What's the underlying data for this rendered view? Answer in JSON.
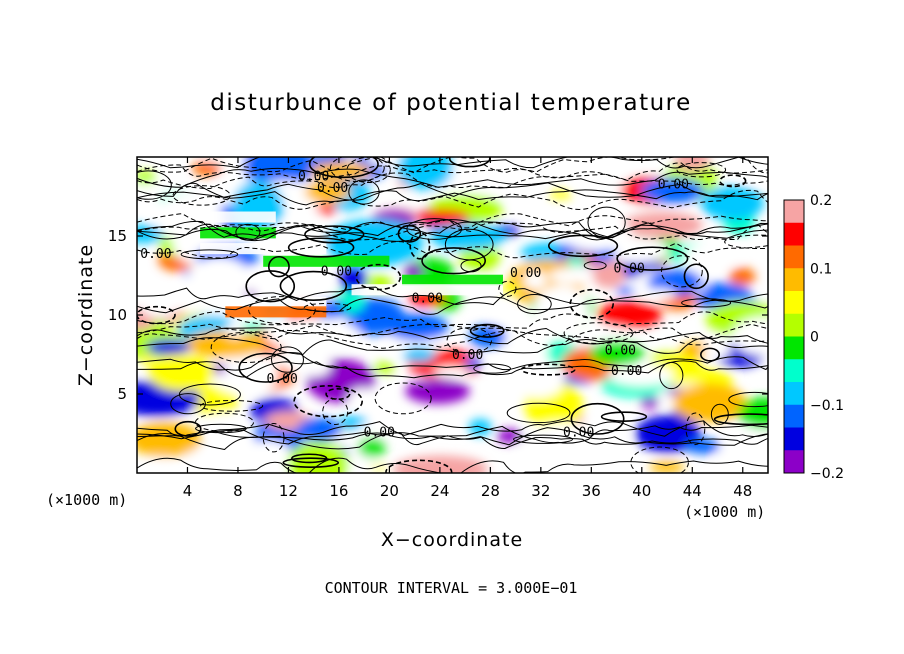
{
  "chart_data": {
    "type": "heatmap",
    "title": "disturbunce of potential temperature",
    "xlabel": "X−coordinate",
    "ylabel": "Z−coordinate",
    "x_unit_left": "(×1000 m)",
    "x_unit_right": "(×1000 m)",
    "footer": "CONTOUR INTERVAL = 3.000E−01",
    "xlim": [
      0,
      50
    ],
    "ylim": [
      0,
      20
    ],
    "x_ticks": [
      4,
      8,
      12,
      16,
      20,
      24,
      28,
      32,
      36,
      40,
      44,
      48
    ],
    "x_tick_labels": [
      "4",
      "8",
      "12",
      "16",
      "20",
      "24",
      "28",
      "32",
      "36",
      "40",
      "44",
      "48"
    ],
    "y_ticks": [
      5,
      10,
      15
    ],
    "y_tick_labels": [
      "5",
      "10",
      "15"
    ],
    "colorbar": {
      "range": [
        -0.2,
        0.2
      ],
      "ticks": [
        0.2,
        0.1,
        0,
        -0.1,
        -0.2
      ],
      "tick_labels": [
        "0.2",
        "0.1",
        "0",
        "−0.1",
        "−0.2"
      ],
      "colors": [
        "#f6a4a4",
        "#ff0000",
        "#ff6a00",
        "#ffbb00",
        "#ffff00",
        "#b4ff00",
        "#00e600",
        "#00ffcc",
        "#00c8ff",
        "#0064ff",
        "#0000e0",
        "#8c00c8"
      ]
    },
    "contour_labels": [
      "0.00",
      "0.00",
      "0.00",
      "0.00",
      "0.00",
      "0.00",
      "0.00",
      "0.00",
      "0.00",
      "0.00",
      "0.00",
      "0.00",
      "0.00",
      "0.00"
    ],
    "contour_label_positions": [
      {
        "x": 14.0,
        "y": 18.5
      },
      {
        "x": 15.5,
        "y": 17.8
      },
      {
        "x": 42.5,
        "y": 18.0
      },
      {
        "x": 1.5,
        "y": 13.6
      },
      {
        "x": 15.8,
        "y": 12.5
      },
      {
        "x": 30.8,
        "y": 12.4
      },
      {
        "x": 39.0,
        "y": 12.7
      },
      {
        "x": 23.0,
        "y": 10.8
      },
      {
        "x": 26.2,
        "y": 7.2
      },
      {
        "x": 38.3,
        "y": 7.5
      },
      {
        "x": 38.8,
        "y": 6.2
      },
      {
        "x": 11.5,
        "y": 5.7
      },
      {
        "x": 19.2,
        "y": 2.3
      },
      {
        "x": 35.0,
        "y": 2.3
      }
    ]
  }
}
